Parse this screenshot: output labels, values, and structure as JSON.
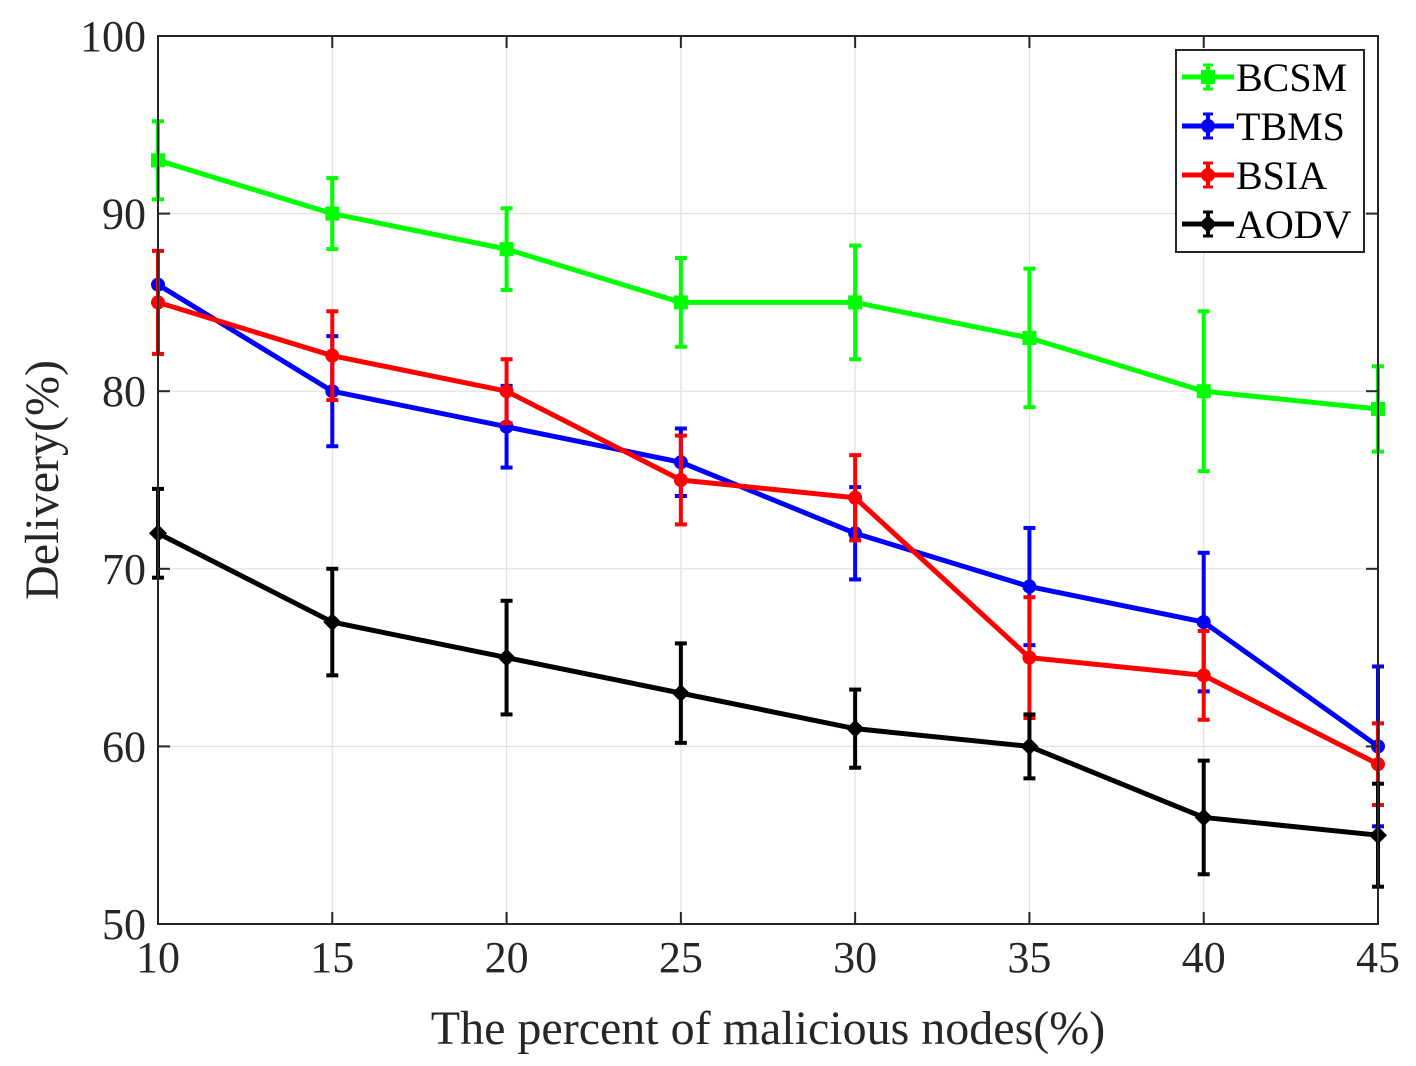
{
  "chart_data": {
    "type": "line",
    "title": "",
    "xlabel": "The percent of malicious nodes(%)",
    "ylabel": "Delivery(%)",
    "x": [
      10,
      15,
      20,
      25,
      30,
      35,
      40,
      45
    ],
    "xlim": [
      10,
      45
    ],
    "ylim": [
      50,
      100
    ],
    "xticks": [
      "10",
      "15",
      "20",
      "25",
      "30",
      "35",
      "40",
      "45"
    ],
    "yticks": [
      "50",
      "60",
      "70",
      "80",
      "90",
      "100"
    ],
    "grid": true,
    "legend_position": "top-right",
    "series": [
      {
        "name": "BCSM",
        "color": "#00ff00",
        "marker": "square",
        "values": [
          93,
          90,
          88,
          85,
          85,
          83,
          80,
          79
        ],
        "errors": [
          2.2,
          2.0,
          2.3,
          2.5,
          3.2,
          3.9,
          4.5,
          2.4
        ]
      },
      {
        "name": "TBMS",
        "color": "#0000ff",
        "marker": "circle",
        "values": [
          86,
          80,
          78,
          76,
          72,
          69,
          67,
          60
        ],
        "errors": [
          0.0,
          3.1,
          2.3,
          1.9,
          2.6,
          3.3,
          3.9,
          4.5
        ]
      },
      {
        "name": "BSIA",
        "color": "#ff0000",
        "marker": "circle",
        "values": [
          85,
          82,
          80,
          75,
          74,
          65,
          64,
          59
        ],
        "errors": [
          2.9,
          2.5,
          1.8,
          2.5,
          2.4,
          3.4,
          2.5,
          2.3
        ]
      },
      {
        "name": "AODV",
        "color": "#000000",
        "marker": "diamond",
        "values": [
          72,
          67,
          65,
          63,
          61,
          60,
          56,
          55
        ],
        "errors": [
          2.5,
          3.0,
          3.2,
          2.8,
          2.2,
          1.8,
          3.2,
          2.9
        ]
      }
    ]
  }
}
